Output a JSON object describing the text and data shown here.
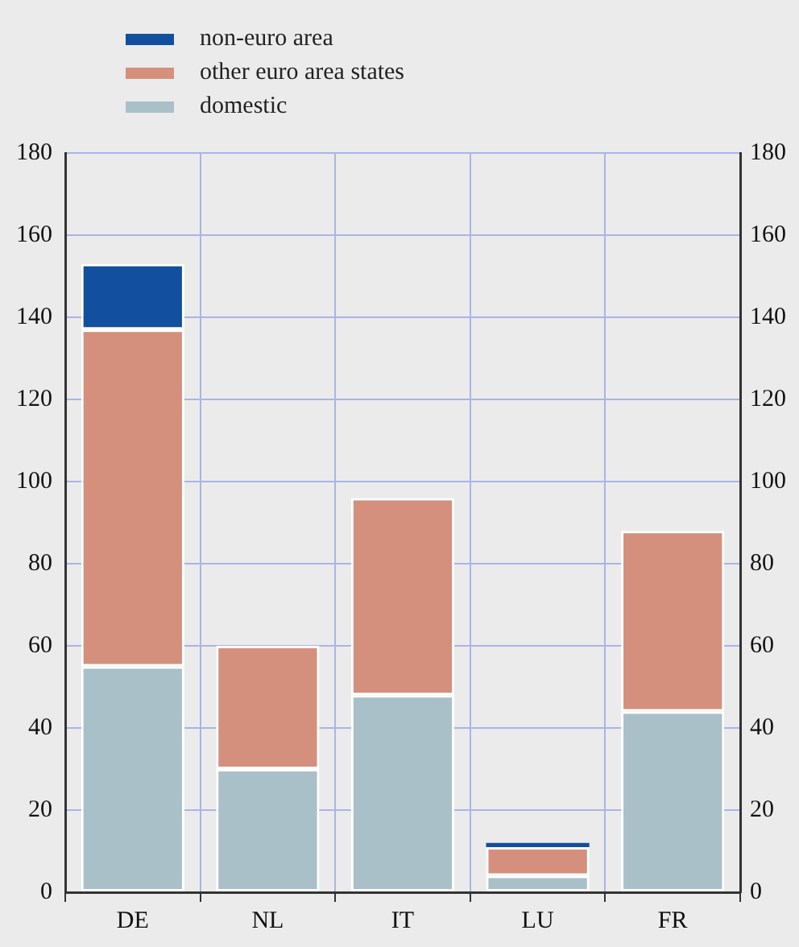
{
  "chart_data": {
    "type": "bar",
    "stacked": true,
    "categories": [
      "DE",
      "NL",
      "IT",
      "LU",
      "FR"
    ],
    "series": [
      {
        "name": "domestic",
        "color": "#a9c0c9",
        "values": [
          55,
          30,
          48,
          4,
          44
        ]
      },
      {
        "name": "other euro area states",
        "color": "#d4907c",
        "values": [
          82,
          30,
          48,
          7,
          44
        ]
      },
      {
        "name": "non-euro area",
        "color": "#124f9e",
        "values": [
          16,
          0,
          0,
          1,
          0
        ]
      }
    ],
    "ylim": [
      0,
      180
    ],
    "yticks": [
      0,
      20,
      40,
      60,
      80,
      100,
      120,
      140,
      160,
      180
    ],
    "y2lim": [
      0,
      180
    ],
    "y2ticks": [
      0,
      20,
      40,
      60,
      80,
      100,
      120,
      140,
      160,
      180
    ],
    "grid": true,
    "legend": "top left"
  }
}
